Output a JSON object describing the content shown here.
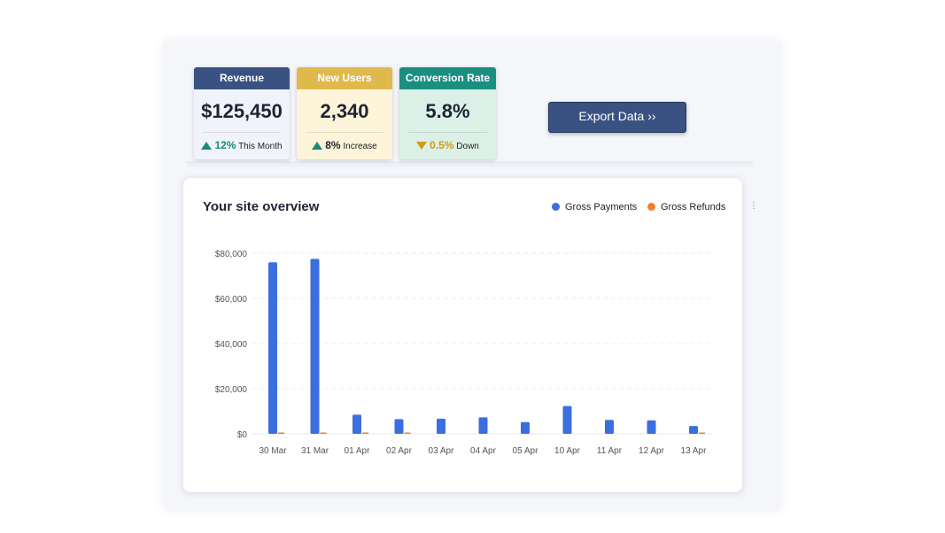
{
  "kpis": [
    {
      "title": "Revenue",
      "value": "$125,450",
      "trend": "up",
      "pct": "12%",
      "note": "This Month",
      "header_color": "#3a5282",
      "body_color": "#f0f3fa"
    },
    {
      "title": "New Users",
      "value": "2,340",
      "trend": "up",
      "pct": "8%",
      "note": "Increase",
      "header_color": "#e0b94c",
      "body_color": "#fdf4da"
    },
    {
      "title": "Conversion Rate",
      "value": "5.8%",
      "trend": "down",
      "pct": "0.5%",
      "note": "Down",
      "header_color": "#1a8f80",
      "body_color": "#dbf0e6"
    }
  ],
  "export_label": "Export Data ››",
  "chart_title": "Your site overview",
  "legend": [
    {
      "label": "Gross Payments",
      "color": "#3b6fe0"
    },
    {
      "label": "Gross Refunds",
      "color": "#f07f2e"
    }
  ],
  "more_icon": "⋮",
  "chart_data": {
    "type": "bar",
    "categories": [
      "30 Mar",
      "31 Mar",
      "01 Apr",
      "02 Apr",
      "03 Apr",
      "04 Apr",
      "05 Apr",
      "10 Apr",
      "11 Apr",
      "12 Apr",
      "13 Apr"
    ],
    "series": [
      {
        "name": "Gross Payments",
        "color": "#3b6fe0",
        "values": [
          76000,
          77500,
          8500,
          6500,
          6700,
          7300,
          5200,
          12300,
          6200,
          6000,
          3500
        ]
      },
      {
        "name": "Gross Refunds",
        "color": "#f07f2e",
        "values": [
          300,
          300,
          300,
          300,
          0,
          0,
          0,
          0,
          0,
          0,
          300
        ]
      }
    ],
    "ylim": [
      0,
      80000
    ],
    "yticks": [
      0,
      20000,
      40000,
      60000,
      80000
    ],
    "ytick_labels": [
      "$0",
      "$20,000",
      "$40,000",
      "$60,000",
      "$80,000"
    ],
    "grid": true
  }
}
